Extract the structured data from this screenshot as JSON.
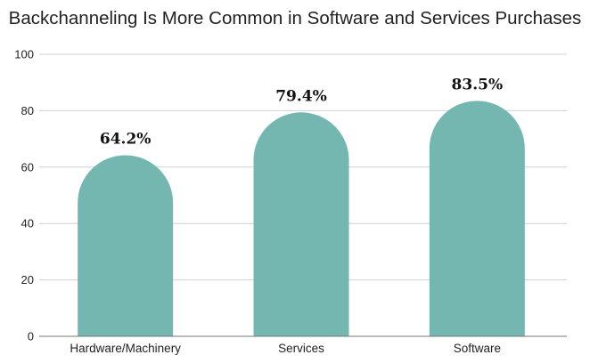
{
  "chart_data": {
    "type": "bar",
    "title": "Backchanneling Is More Common in Software and Services Purchases",
    "xlabel": "",
    "ylabel": "",
    "categories": [
      "Hardware/Machinery",
      "Services",
      "Software"
    ],
    "values": [
      64.2,
      79.4,
      83.5
    ],
    "data_labels": [
      "64.2%",
      "79.4%",
      "83.5%"
    ],
    "ylim": [
      0,
      100
    ],
    "yticks": [
      "0",
      "20",
      "40",
      "60",
      "80",
      "100"
    ],
    "grid": true,
    "legend": "none",
    "bar_color": "#74b6b0",
    "bar_shape": "rounded-top"
  }
}
